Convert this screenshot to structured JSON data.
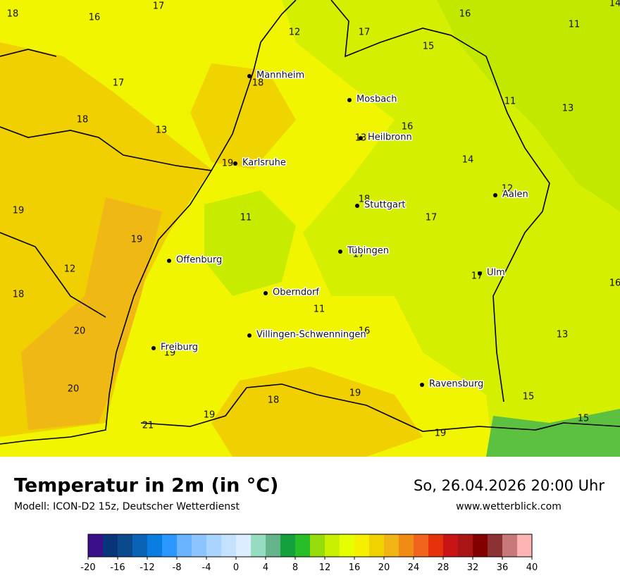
{
  "map": {
    "temperatures": [
      18,
      17,
      16,
      12,
      17,
      16,
      14,
      11,
      15,
      17,
      18,
      11,
      13,
      18,
      13,
      16,
      13,
      14,
      19,
      12,
      18,
      19,
      11,
      17,
      19,
      17,
      12,
      17,
      16,
      18,
      11,
      20,
      16,
      13,
      19,
      20,
      19,
      18,
      15,
      19,
      21,
      15,
      19
    ],
    "cities": [
      "Mannheim",
      "Mosbach",
      "Heilbronn",
      "Karlsruhe",
      "Aalen",
      "Stuttgart",
      "Tübingen",
      "Offenburg",
      "Ulm",
      "Oberndorf",
      "Villingen-Schwenningen",
      "Freiburg",
      "Ravensburg"
    ]
  },
  "footer": {
    "title": "Temperatur in 2m (in °C)",
    "subtitle": "Modell: ICON-D2 15z, Deutscher Wetterdienst",
    "date": "So, 26.04.2026 20:00 Uhr",
    "site": "www.wetterblick.com"
  },
  "colorbar": {
    "range": [
      -20,
      40
    ],
    "colors": [
      "#3b0f8a",
      "#06357a",
      "#0a4a8c",
      "#0b63b8",
      "#0a7de0",
      "#2a96ff",
      "#6ab4ff",
      "#8cc4ff",
      "#a8d4ff",
      "#c4e2ff",
      "#dcedff",
      "#96dcc0",
      "#64b48c",
      "#14a03c",
      "#28be28",
      "#96dc0a",
      "#c8f000",
      "#e6ff00",
      "#f5f000",
      "#f0d200",
      "#f0b414",
      "#f08c14",
      "#f0641e",
      "#e6320a",
      "#c81414",
      "#aa1414",
      "#820000",
      "#8c3232",
      "#c87878",
      "#ffb4b4"
    ],
    "ticks": [
      -20,
      -16,
      -12,
      -8,
      -4,
      0,
      4,
      8,
      12,
      16,
      20,
      24,
      28,
      32,
      36,
      40
    ]
  }
}
